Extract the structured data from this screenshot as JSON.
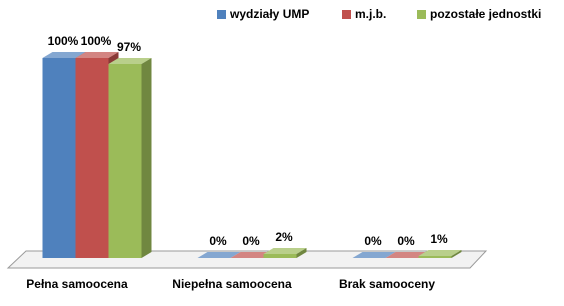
{
  "chart_data": {
    "type": "bar3d",
    "categories": [
      "Pełna samoocena",
      "Niepełna samoocena",
      "Brak samooceny"
    ],
    "series": [
      {
        "name": "wydziały UMP",
        "color": "#4f81bd",
        "values": [
          100,
          0,
          0
        ],
        "value_labels": [
          "100%",
          "0%",
          "0%"
        ]
      },
      {
        "name": "m.j.b.",
        "color": "#c0504d",
        "values": [
          100,
          0,
          0
        ],
        "value_labels": [
          "100%",
          "0%",
          "0%"
        ]
      },
      {
        "name": "pozostałe jednostki",
        "color": "#9bbb59",
        "values": [
          97,
          2,
          1
        ],
        "value_labels": [
          "97%",
          "2%",
          "1%"
        ]
      }
    ],
    "legend": "top-right"
  }
}
